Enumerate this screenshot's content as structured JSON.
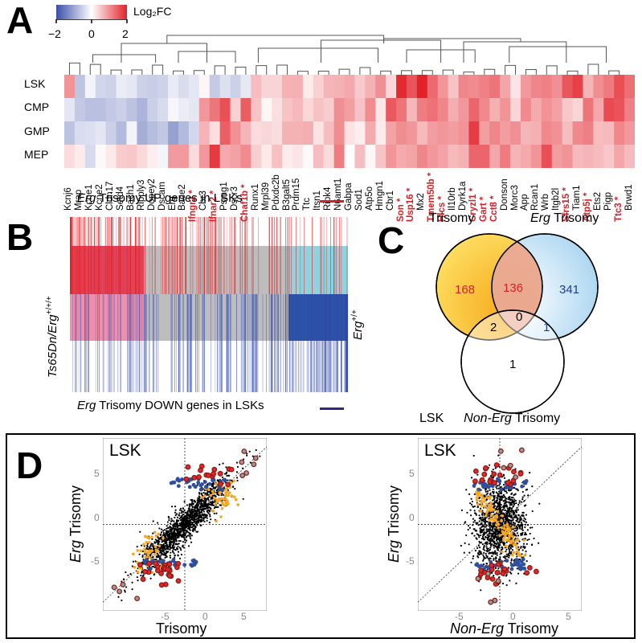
{
  "panels": {
    "a": "A",
    "b": "B",
    "c": "C",
    "d": "D"
  },
  "colorbar": {
    "title": "Log₂FC",
    "ticks": [
      "−2",
      "0",
      "2"
    ],
    "colors": [
      "#3a4ea8",
      "#ffffff",
      "#e32129"
    ]
  },
  "heatmap": {
    "rows": [
      "LSK",
      "CMP",
      "GMP",
      "MEP"
    ],
    "genes": [
      "Kcnj6",
      "Mrap",
      "Kcne1",
      "Kcne2",
      "Cldn17",
      "Setd4",
      "Bach1",
      "Ripply3",
      "Dopey2",
      "Dscam",
      "Erg",
      "Bace2",
      "Ifngr2",
      "Cbr3",
      "Ifnar2",
      "Psmg1",
      "Dscr3",
      "Chaf1b",
      "Runx1",
      "Mrpl39",
      "Pdxdc2b",
      "B3galt5",
      "Prdm15",
      "Ttc",
      "Itsn1",
      "Ripk4",
      "N6amt1",
      "Gabpa",
      "Sod1",
      "Atp5o",
      "Hmgn1",
      "Cbr1",
      "Son",
      "Usp16",
      "Mx2",
      "Tmem50b",
      "Hlcs",
      "Il10rb",
      "Dyrk1a",
      "Cryzl1",
      "Gart",
      "Cct8",
      "Donson",
      "Morc3",
      "App",
      "Rcan1",
      "Wrb",
      "Itgb2l",
      "Sfrs15",
      "Tiam1",
      "Atp5j",
      "Ets2",
      "Pigp",
      "Ttc3",
      "Brwd1"
    ],
    "significant_genes": [
      "Ifngr2",
      "Ifnar2",
      "Chaf1b",
      "Son",
      "Usp16",
      "Tmem50b",
      "Hlcs",
      "Cryzl1",
      "Gart",
      "Cct8",
      "Sfrs15",
      "Atp5j",
      "Ttc3"
    ],
    "star": "*"
  },
  "panel_b": {
    "left_label": "Ts65Dn/Erg",
    "left_sup": "+/+/+",
    "right_label": "Erg",
    "right_sup": "+/+",
    "up_label_italic": "Erg",
    "up_label_rest": " Trisomy UP genes in LSKs",
    "down_label_italic": "Erg",
    "down_label_rest": " Trisomy DOWN genes in LSKs",
    "up_color": "#d2232a",
    "down_color": "#2a2a8a"
  },
  "venn": {
    "set_a": "Trisomy",
    "set_b_italic": "Erg",
    "set_b_rest": " Trisomy",
    "set_c_prefix": "LSK",
    "set_c_italic": "Non-Erg",
    "set_c_rest": " Trisomy",
    "counts": {
      "a_only": "168",
      "ab": "136",
      "b_only": "341",
      "ac": "2",
      "abc": "0",
      "bc": "1",
      "c_only": "1"
    },
    "colors": {
      "a": "#f7c21b",
      "b": "#b8dcf2",
      "a_text": "#d2232a",
      "b_text": "#1f3c8a"
    }
  },
  "panel_d": {
    "plots": [
      {
        "title": "LSK",
        "x_label": "Trisomy",
        "x_label_italic": "",
        "y_label_italic": "Erg",
        "y_label_rest": " Trisomy",
        "x_ticks": [
          "-5",
          "0",
          "5"
        ],
        "y_ticks": [
          "5",
          "0",
          "-5"
        ]
      },
      {
        "title": "LSK",
        "x_label": " Trisomy",
        "x_label_italic": "Non-Erg",
        "y_label_italic": "Erg",
        "y_label_rest": " Trisomy",
        "x_ticks": [
          "-5",
          "0",
          "5"
        ],
        "y_ticks": [
          "5",
          "0",
          "-5"
        ]
      }
    ],
    "colors": {
      "dots": "#000000",
      "orange": "#f5a623",
      "red": "#e3262b",
      "blue": "#2e4fa0",
      "grey": "#9a9a9a"
    }
  }
}
